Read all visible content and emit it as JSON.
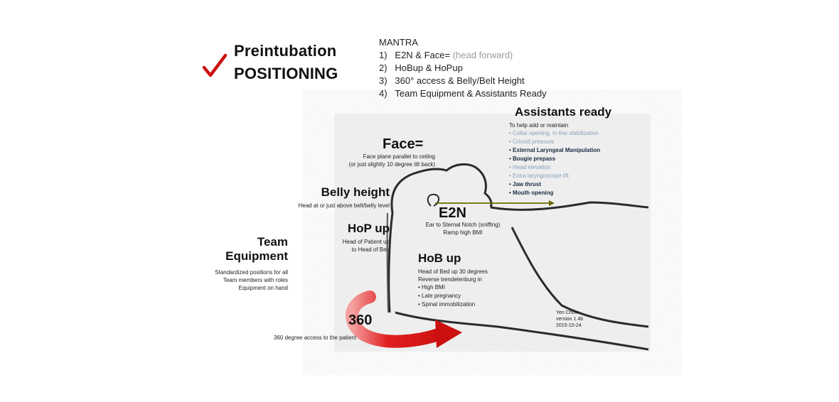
{
  "heading": {
    "check_icon": "checkmark-icon",
    "line1": "Preintubation",
    "line2": "POSITIONING"
  },
  "mantra": {
    "title": "MANTRA",
    "items": [
      {
        "num": "1)",
        "text": "E2N & Face=",
        "hint": "(head forward)"
      },
      {
        "num": "2)",
        "text": "HoBup & HoPup"
      },
      {
        "num": "3)",
        "text": "360° access & Belly/Belt Height"
      },
      {
        "num": "4)",
        "text": "Team Equipment & Assistants Ready"
      }
    ]
  },
  "face": {
    "title": "Face=",
    "line1": "Face plane parallel to ceiling",
    "line2": "(or just slightly 10 degree tilt back)"
  },
  "belly": {
    "title": "Belly height",
    "desc": "Head at or just above  belt/belly level"
  },
  "hop": {
    "title": "HoP up",
    "line1": "Head of Patient up",
    "line2": "to Head of Bed"
  },
  "team": {
    "title1": "Team",
    "title2": "Equipment",
    "line1": "Standardized positions for all",
    "line2": "Team members with roles",
    "line3": "Equipment on hand"
  },
  "e2n": {
    "title": "E2N",
    "line1": "Ear to Sternal Notch (sniffing)",
    "line2": "Ramp high BMI"
  },
  "hob": {
    "title": "HoB up",
    "line1": "Head of Bed up 30 degrees",
    "line2": "Reverse trendelenburg in",
    "bullets": [
      "High BMI",
      "Late pregnancy",
      "Spinal immobilization"
    ]
  },
  "access": {
    "title": "360",
    "desc": "360 degree access  to the patient"
  },
  "assistants": {
    "title": "Assistants ready",
    "intro": "To help add or maintain",
    "items": [
      {
        "text": "Collar opening, in line stabilization",
        "style": "grey"
      },
      {
        "text": "Cricoid pressure",
        "style": "grey"
      },
      {
        "text": "External Laryngeal Manipulation",
        "style": "dark"
      },
      {
        "text": "Bougie prepass",
        "style": "dark"
      },
      {
        "text": "Head elevation",
        "style": "grey"
      },
      {
        "text": "Extra laryngoscope lift",
        "style": "grey"
      },
      {
        "text": "Jaw thrust",
        "style": "dark"
      },
      {
        "text": "Mouth opening",
        "style": "dark"
      }
    ]
  },
  "credit": {
    "author": "Yen Chow",
    "version": "version 1.4b",
    "date": "2015-10-24"
  },
  "colors": {
    "check": "#cc1111",
    "arrow": "#e02020",
    "e2n_line": "#6b6b00",
    "dark_item": "#1a2a44",
    "grey_item": "#8aa0bb"
  }
}
